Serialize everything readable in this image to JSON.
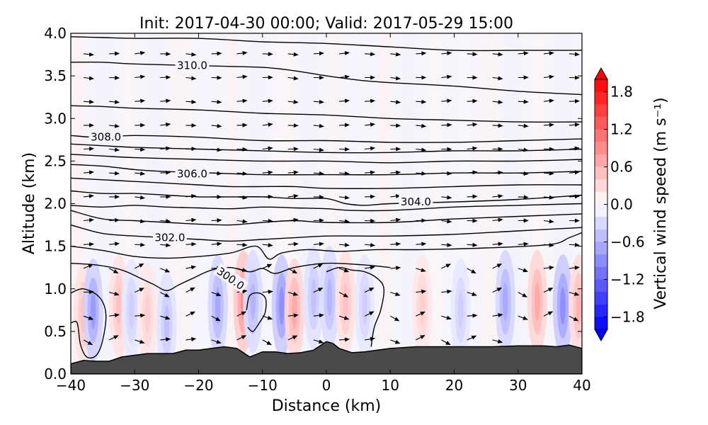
{
  "chart_data": {
    "type": "contour",
    "title": "Init: 2017-04-30 00:00; Valid: 2017-05-29 15:00",
    "xlabel": "Distance (km)",
    "ylabel": "Altitude (km)",
    "xlim": [
      -40,
      40
    ],
    "ylim": [
      0.0,
      4.0
    ],
    "x_ticks": [
      "−40",
      "−30",
      "−20",
      "−10",
      "0",
      "10",
      "20",
      "30",
      "40"
    ],
    "y_ticks": [
      "0.0",
      "0.5",
      "1.0",
      "1.5",
      "2.0",
      "2.5",
      "3.0",
      "3.5",
      "4.0"
    ],
    "colorbar": {
      "label": "Vertical wind speed (m s⁻¹)",
      "range": [
        -2.0,
        2.0
      ],
      "colormap": "bwr",
      "ticks": [
        "1.8",
        "1.2",
        "0.6",
        "0.0",
        "−0.6",
        "−1.2",
        "−1.8"
      ],
      "extend": "both"
    },
    "contour_labels": [
      {
        "text": "310.0",
        "x": -21,
        "y": 3.62
      },
      {
        "text": "308.0",
        "x": -34.5,
        "y": 2.78
      },
      {
        "text": "306.0",
        "x": -21,
        "y": 2.35
      },
      {
        "text": "304.0",
        "x": 14,
        "y": 2.02
      },
      {
        "text": "302.0",
        "x": -24.5,
        "y": 1.6
      },
      {
        "text": "300.0",
        "x": -15,
        "y": 1.12
      }
    ],
    "isentropes": [
      {
        "value": 300.0,
        "points": [
          [
            -40,
            1.3
          ],
          [
            -36,
            1.28
          ],
          [
            -32,
            1.22
          ],
          [
            -29,
            1.12
          ],
          [
            -27,
            1.05
          ],
          [
            -25,
            0.98
          ],
          [
            -23,
            1.05
          ],
          [
            -21,
            1.12
          ],
          [
            -18,
            1.22
          ],
          [
            -15,
            1.25
          ],
          [
            -12,
            1.2
          ],
          [
            -10,
            1.24
          ],
          [
            -8,
            1.18
          ],
          [
            -5,
            1.25
          ],
          [
            0,
            1.3
          ],
          [
            6,
            1.28
          ],
          [
            10,
            1.25
          ]
        ]
      },
      {
        "value": 301.0,
        "points": [
          [
            -40,
            1.5
          ],
          [
            -35,
            1.45
          ],
          [
            -30,
            1.38
          ],
          [
            -25,
            1.36
          ],
          [
            -20,
            1.38
          ],
          [
            -15,
            1.42
          ],
          [
            -11,
            1.5
          ],
          [
            -9,
            1.35
          ],
          [
            -7,
            1.42
          ],
          [
            -3,
            1.46
          ],
          [
            2,
            1.44
          ],
          [
            8,
            1.46
          ],
          [
            15,
            1.46
          ],
          [
            25,
            1.48
          ],
          [
            35,
            1.52
          ],
          [
            38,
            1.6
          ],
          [
            40,
            1.66
          ]
        ]
      },
      {
        "value": 302.0,
        "points": [
          [
            -40,
            1.75
          ],
          [
            -35,
            1.65
          ],
          [
            -30,
            1.62
          ],
          [
            -25,
            1.6
          ],
          [
            -20,
            1.58
          ],
          [
            -15,
            1.56
          ],
          [
            -10,
            1.58
          ],
          [
            -5,
            1.6
          ],
          [
            0,
            1.62
          ],
          [
            5,
            1.62
          ],
          [
            10,
            1.62
          ],
          [
            20,
            1.64
          ],
          [
            30,
            1.68
          ],
          [
            40,
            1.72
          ]
        ]
      },
      {
        "value": 302.5,
        "points": [
          [
            -40,
            1.92
          ],
          [
            -35,
            1.82
          ],
          [
            -30,
            1.8
          ],
          [
            -25,
            1.78
          ],
          [
            -20,
            1.76
          ],
          [
            -15,
            1.75
          ],
          [
            -10,
            1.78
          ],
          [
            -5,
            1.8
          ],
          [
            0,
            1.78
          ],
          [
            10,
            1.78
          ],
          [
            20,
            1.82
          ],
          [
            30,
            1.85
          ],
          [
            40,
            1.88
          ]
        ]
      },
      {
        "value": 303.0,
        "points": [
          [
            -40,
            1.98
          ],
          [
            -35,
            1.96
          ],
          [
            -30,
            1.98
          ],
          [
            -25,
            1.96
          ],
          [
            -20,
            1.95
          ],
          [
            -15,
            1.94
          ],
          [
            -10,
            1.96
          ],
          [
            -5,
            1.95
          ],
          [
            0,
            1.94
          ],
          [
            4,
            1.92
          ],
          [
            10,
            1.92
          ],
          [
            20,
            1.96
          ],
          [
            30,
            1.98
          ],
          [
            40,
            2.0
          ]
        ]
      },
      {
        "value": 304.0,
        "points": [
          [
            -40,
            2.15
          ],
          [
            -35,
            2.12
          ],
          [
            -30,
            2.12
          ],
          [
            -25,
            2.1
          ],
          [
            -20,
            2.08
          ],
          [
            -15,
            2.08
          ],
          [
            -10,
            2.08
          ],
          [
            -5,
            2.06
          ],
          [
            0,
            2.06
          ],
          [
            3,
            2.0
          ],
          [
            6,
            1.98
          ],
          [
            10,
            2.0
          ],
          [
            20,
            2.02
          ],
          [
            30,
            2.05
          ],
          [
            40,
            2.1
          ]
        ]
      },
      {
        "value": 305.0,
        "points": [
          [
            -40,
            2.3
          ],
          [
            -35,
            2.28
          ],
          [
            -30,
            2.26
          ],
          [
            -25,
            2.24
          ],
          [
            -20,
            2.22
          ],
          [
            -15,
            2.2
          ],
          [
            -10,
            2.2
          ],
          [
            -5,
            2.2
          ],
          [
            0,
            2.18
          ],
          [
            10,
            2.18
          ],
          [
            20,
            2.2
          ],
          [
            30,
            2.22
          ],
          [
            40,
            2.22
          ]
        ]
      },
      {
        "value": 306.0,
        "points": [
          [
            -40,
            2.46
          ],
          [
            -35,
            2.44
          ],
          [
            -30,
            2.4
          ],
          [
            -26,
            2.38
          ],
          [
            -18,
            2.36
          ],
          [
            -10,
            2.34
          ],
          [
            0,
            2.34
          ],
          [
            10,
            2.34
          ],
          [
            20,
            2.36
          ],
          [
            30,
            2.36
          ],
          [
            40,
            2.38
          ]
        ]
      },
      {
        "value": 306.5,
        "points": [
          [
            -40,
            2.58
          ],
          [
            -35,
            2.56
          ],
          [
            -30,
            2.54
          ],
          [
            -20,
            2.52
          ],
          [
            -10,
            2.5
          ],
          [
            0,
            2.5
          ],
          [
            10,
            2.48
          ],
          [
            20,
            2.5
          ],
          [
            30,
            2.5
          ],
          [
            40,
            2.52
          ]
        ]
      },
      {
        "value": 307.0,
        "points": [
          [
            -40,
            2.7
          ],
          [
            -35,
            2.68
          ],
          [
            -30,
            2.66
          ],
          [
            -20,
            2.64
          ],
          [
            -10,
            2.62
          ],
          [
            0,
            2.6
          ],
          [
            10,
            2.6
          ],
          [
            20,
            2.62
          ],
          [
            30,
            2.62
          ],
          [
            40,
            2.64
          ]
        ]
      },
      {
        "value": 308.0,
        "points": [
          [
            -40,
            2.8
          ],
          [
            -36,
            2.78
          ],
          [
            -30,
            2.8
          ],
          [
            -20,
            2.78
          ],
          [
            -10,
            2.74
          ],
          [
            0,
            2.74
          ],
          [
            10,
            2.72
          ],
          [
            20,
            2.72
          ],
          [
            30,
            2.74
          ],
          [
            40,
            2.76
          ]
        ]
      },
      {
        "value": 309.0,
        "points": [
          [
            -40,
            3.15
          ],
          [
            -35,
            3.14
          ],
          [
            -30,
            3.12
          ],
          [
            -20,
            3.1
          ],
          [
            -10,
            3.06
          ],
          [
            0,
            3.04
          ],
          [
            10,
            3.0
          ],
          [
            20,
            2.98
          ],
          [
            30,
            2.96
          ],
          [
            40,
            2.96
          ]
        ]
      },
      {
        "value": 310.0,
        "points": [
          [
            -40,
            3.66
          ],
          [
            -35,
            3.66
          ],
          [
            -30,
            3.64
          ],
          [
            -20,
            3.62
          ],
          [
            -10,
            3.6
          ],
          [
            -5,
            3.56
          ],
          [
            0,
            3.5
          ],
          [
            5,
            3.45
          ],
          [
            10,
            3.42
          ],
          [
            20,
            3.38
          ],
          [
            30,
            3.32
          ],
          [
            40,
            3.28
          ]
        ]
      },
      {
        "value": 311.0,
        "points": [
          [
            -40,
            3.96
          ],
          [
            -35,
            3.95
          ],
          [
            -30,
            3.94
          ],
          [
            -20,
            3.94
          ],
          [
            -10,
            3.9
          ],
          [
            0,
            3.88
          ],
          [
            10,
            3.84
          ],
          [
            20,
            3.8
          ],
          [
            30,
            3.8
          ],
          [
            40,
            3.8
          ]
        ]
      }
    ],
    "closed_contours": [
      {
        "value": 300.0,
        "points": [
          [
            -40,
            0.95
          ],
          [
            -38,
            1.0
          ],
          [
            -35.5,
            0.9
          ],
          [
            -34.5,
            0.7
          ],
          [
            -35,
            0.4
          ],
          [
            -36,
            0.22
          ],
          [
            -37.5,
            0.2
          ],
          [
            -38.5,
            0.35
          ],
          [
            -39,
            0.6
          ],
          [
            -40,
            0.6
          ]
        ]
      },
      {
        "value": 300.0,
        "points": [
          [
            -12.5,
            0.75
          ],
          [
            -12,
            0.92
          ],
          [
            -10.5,
            0.95
          ],
          [
            -9.5,
            0.88
          ],
          [
            -9.6,
            0.72
          ],
          [
            -10.5,
            0.6
          ],
          [
            -11.5,
            0.5
          ],
          [
            -12.3,
            0.55
          ]
        ]
      },
      {
        "value": 300.0,
        "points": [
          [
            0,
            1.2
          ],
          [
            2,
            1.25
          ],
          [
            4,
            1.22
          ],
          [
            6,
            1.2
          ],
          [
            8,
            1.12
          ],
          [
            9,
            1.0
          ],
          [
            8.5,
            0.75
          ],
          [
            7.5,
            0.55
          ],
          [
            7,
            0.32
          ]
        ]
      }
    ],
    "terrain": [
      [
        -40,
        0.12
      ],
      [
        -38,
        0.16
      ],
      [
        -36,
        0.15
      ],
      [
        -34,
        0.15
      ],
      [
        -32,
        0.2
      ],
      [
        -30,
        0.22
      ],
      [
        -28,
        0.24
      ],
      [
        -26,
        0.24
      ],
      [
        -24,
        0.24
      ],
      [
        -22,
        0.28
      ],
      [
        -20,
        0.28
      ],
      [
        -18,
        0.3
      ],
      [
        -16,
        0.32
      ],
      [
        -14,
        0.3
      ],
      [
        -13,
        0.25
      ],
      [
        -12,
        0.2
      ],
      [
        -10,
        0.26
      ],
      [
        -8,
        0.26
      ],
      [
        -6,
        0.24
      ],
      [
        -4,
        0.25
      ],
      [
        -2,
        0.28
      ],
      [
        0,
        0.38
      ],
      [
        1,
        0.36
      ],
      [
        2,
        0.3
      ],
      [
        4,
        0.25
      ],
      [
        6,
        0.26
      ],
      [
        8,
        0.28
      ],
      [
        10,
        0.3
      ],
      [
        14,
        0.32
      ],
      [
        18,
        0.32
      ],
      [
        22,
        0.32
      ],
      [
        26,
        0.32
      ],
      [
        30,
        0.33
      ],
      [
        34,
        0.33
      ],
      [
        36,
        0.32
      ],
      [
        38,
        0.34
      ],
      [
        40,
        0.3
      ]
    ],
    "w_anomalies": [
      {
        "x": -38,
        "y": 0.7,
        "w": 0.5
      },
      {
        "x": -36.5,
        "y": 0.75,
        "w": -0.8
      },
      {
        "x": -32.5,
        "y": 0.8,
        "w": 0.5
      },
      {
        "x": -30.5,
        "y": 0.75,
        "w": -0.4
      },
      {
        "x": -28,
        "y": 0.7,
        "w": 0.4
      },
      {
        "x": -25,
        "y": 0.6,
        "w": -0.5
      },
      {
        "x": -17,
        "y": 0.8,
        "w": -0.7
      },
      {
        "x": -13,
        "y": 0.85,
        "w": 0.9
      },
      {
        "x": -11.5,
        "y": 0.85,
        "w": -0.6
      },
      {
        "x": -7,
        "y": 0.8,
        "w": -0.9
      },
      {
        "x": -5,
        "y": 0.75,
        "w": 0.7
      },
      {
        "x": -2,
        "y": 0.9,
        "w": -0.5
      },
      {
        "x": 0.5,
        "y": 0.9,
        "w": -0.6
      },
      {
        "x": 3,
        "y": 0.85,
        "w": 0.5
      },
      {
        "x": 6,
        "y": 0.8,
        "w": -0.4
      },
      {
        "x": 15,
        "y": 0.8,
        "w": 0.4
      },
      {
        "x": 21,
        "y": 0.75,
        "w": -0.4
      },
      {
        "x": 28,
        "y": 0.85,
        "w": -0.7
      },
      {
        "x": 33,
        "y": 0.85,
        "w": 0.7
      },
      {
        "x": 37,
        "y": 0.8,
        "w": -0.9
      },
      {
        "x": 39.5,
        "y": 0.8,
        "w": 0.6
      }
    ]
  }
}
